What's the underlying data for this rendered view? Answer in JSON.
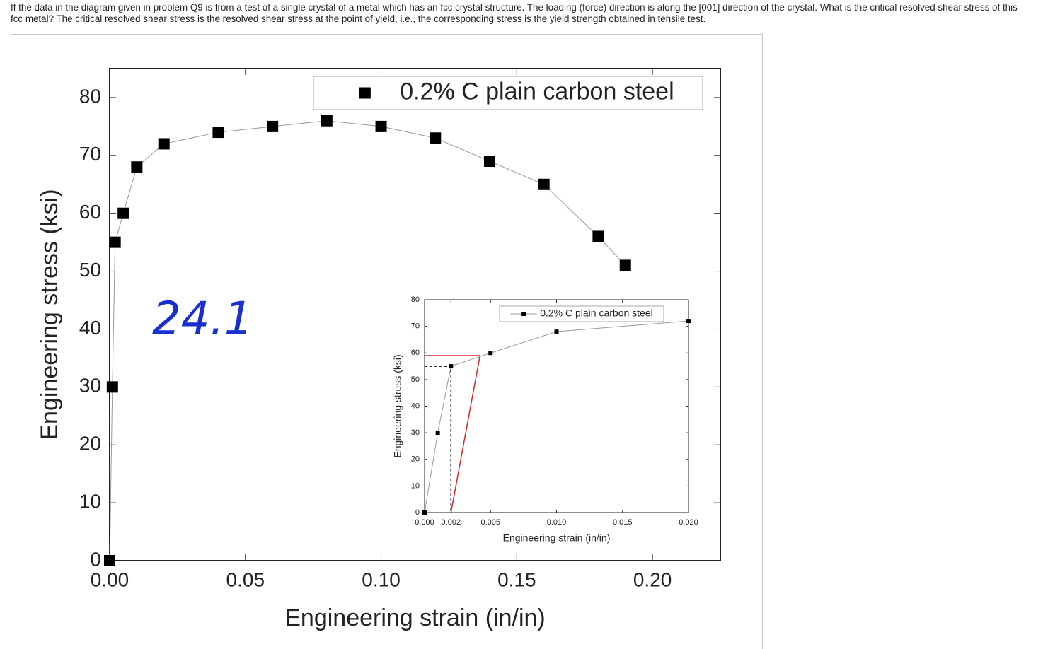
{
  "question": "If the data in the diagram given in problem Q9 is from a test of a single crystal of a metal which has an fcc crystal structure. The loading (force) direction is along the [001] direction of the crystal. What is the critical resolved shear stress of this fcc metal? The critical resolved shear stress is the resolved shear stress at the point of yield, i.e., the corresponding stress is the yield strength obtained in tensile test.",
  "handwritten_note": "24.1",
  "chart_data": [
    {
      "type": "line",
      "x_label": "Engineering strain (in/in)",
      "y_label": "Engineering stress (ksi)",
      "series": [
        {
          "name": "0.2% C plain carbon steel",
          "color": "#000000",
          "x": [
            0,
            0.001,
            0.002,
            0.005,
            0.01,
            0.02,
            0.04,
            0.06,
            0.08,
            0.1,
            0.12,
            0.14,
            0.16,
            0.18,
            0.19
          ],
          "values": [
            0,
            30,
            55,
            60,
            68,
            72,
            74,
            75,
            76,
            75,
            73,
            69,
            65,
            56,
            51
          ]
        }
      ],
      "xlim": [
        0,
        0.225
      ],
      "ylim": [
        0,
        85
      ],
      "xticks": [
        {
          "value": 0,
          "label": "0.00"
        },
        {
          "value": 0.05,
          "label": "0.05"
        },
        {
          "value": 0.1,
          "label": "0.10"
        },
        {
          "value": 0.15,
          "label": "0.15"
        },
        {
          "value": 0.2,
          "label": "0.20"
        }
      ],
      "yticks": [
        0,
        10,
        20,
        30,
        40,
        50,
        60,
        70,
        80
      ],
      "legend": "upper right"
    },
    {
      "type": "line",
      "x_label": "Engineering strain (in/in)",
      "y_label": "Engineering stress (ksi)",
      "series": [
        {
          "name": "0.2% C plain carbon steel",
          "color": "#000000",
          "x": [
            0,
            0.001,
            0.002,
            0.005,
            0.01,
            0.02
          ],
          "values": [
            0,
            30,
            55,
            60,
            68,
            72
          ]
        }
      ],
      "reference_lines": [
        {
          "x": [
            0,
            0.0042,
            0.002
          ],
          "y": [
            59,
            59,
            0
          ],
          "color": "#d62728",
          "dashed": false
        },
        {
          "x": [
            0,
            0.002,
            0.002
          ],
          "y": [
            55,
            55,
            0
          ],
          "color": "#000000",
          "dashed": true
        }
      ],
      "xlim": [
        0,
        0.02
      ],
      "ylim": [
        0,
        80
      ],
      "xticks": [
        {
          "value": 0,
          "label": "0.000"
        },
        {
          "value": 0.002,
          "label": "0.002"
        },
        {
          "value": 0.005,
          "label": "0.005"
        },
        {
          "value": 0.01,
          "label": "0.010"
        },
        {
          "value": 0.015,
          "label": "0.015"
        },
        {
          "value": 0.02,
          "label": "0.020"
        }
      ],
      "yticks": [
        0,
        10,
        20,
        30,
        40,
        50,
        60,
        70,
        80
      ],
      "legend": "upper right"
    }
  ]
}
